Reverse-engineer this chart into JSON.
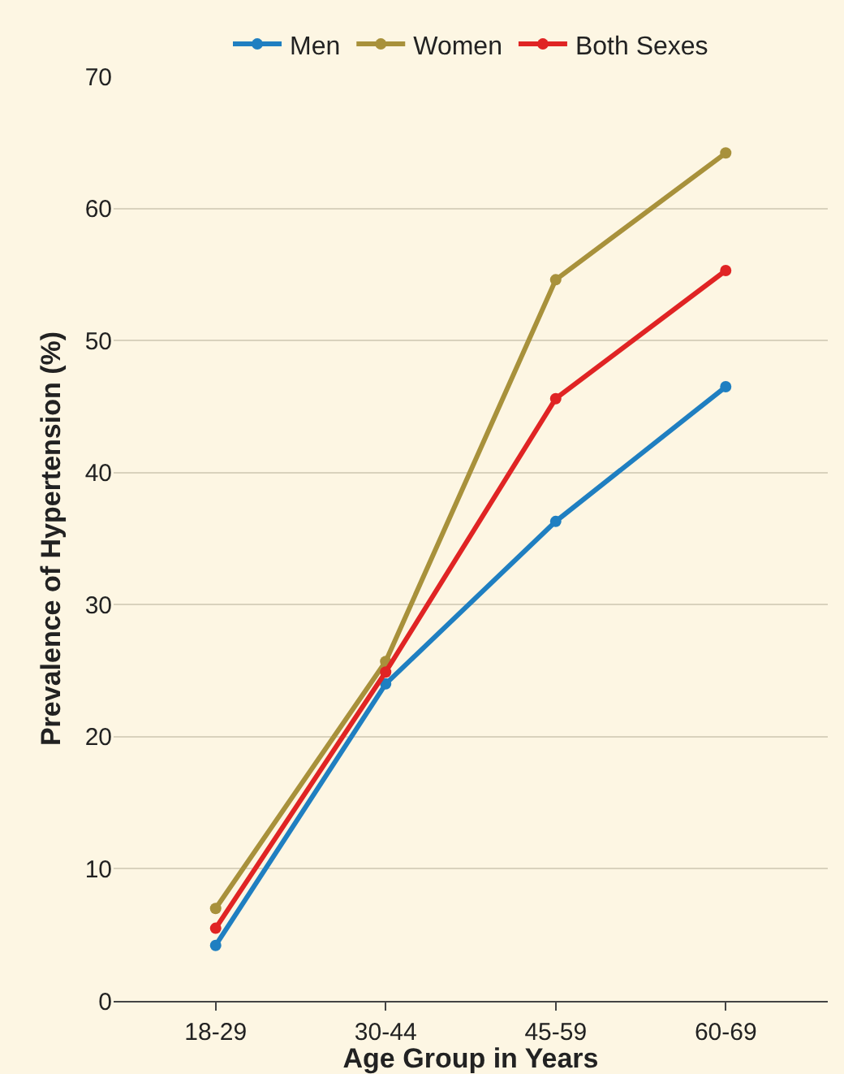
{
  "chart_data": {
    "type": "line",
    "xlabel": "Age Group in Years",
    "ylabel": "Prevalence of Hypertension (%)",
    "categories": [
      "18-29",
      "30-44",
      "45-59",
      "60-69"
    ],
    "series": [
      {
        "name": "Men",
        "color": "#1f7fc1",
        "values": [
          4.2,
          24.0,
          36.3,
          46.5
        ]
      },
      {
        "name": "Women",
        "color": "#a8913b",
        "values": [
          7.0,
          25.7,
          54.6,
          64.2
        ]
      },
      {
        "name": "Both Sexes",
        "color": "#e02424",
        "values": [
          5.5,
          24.9,
          45.6,
          55.3
        ]
      }
    ],
    "ylim": [
      0,
      70
    ],
    "yticks": [
      0,
      10,
      20,
      30,
      40,
      50,
      60,
      70
    ],
    "grid": "y",
    "legend": "top",
    "marker": "circle",
    "line_style": "solid"
  }
}
